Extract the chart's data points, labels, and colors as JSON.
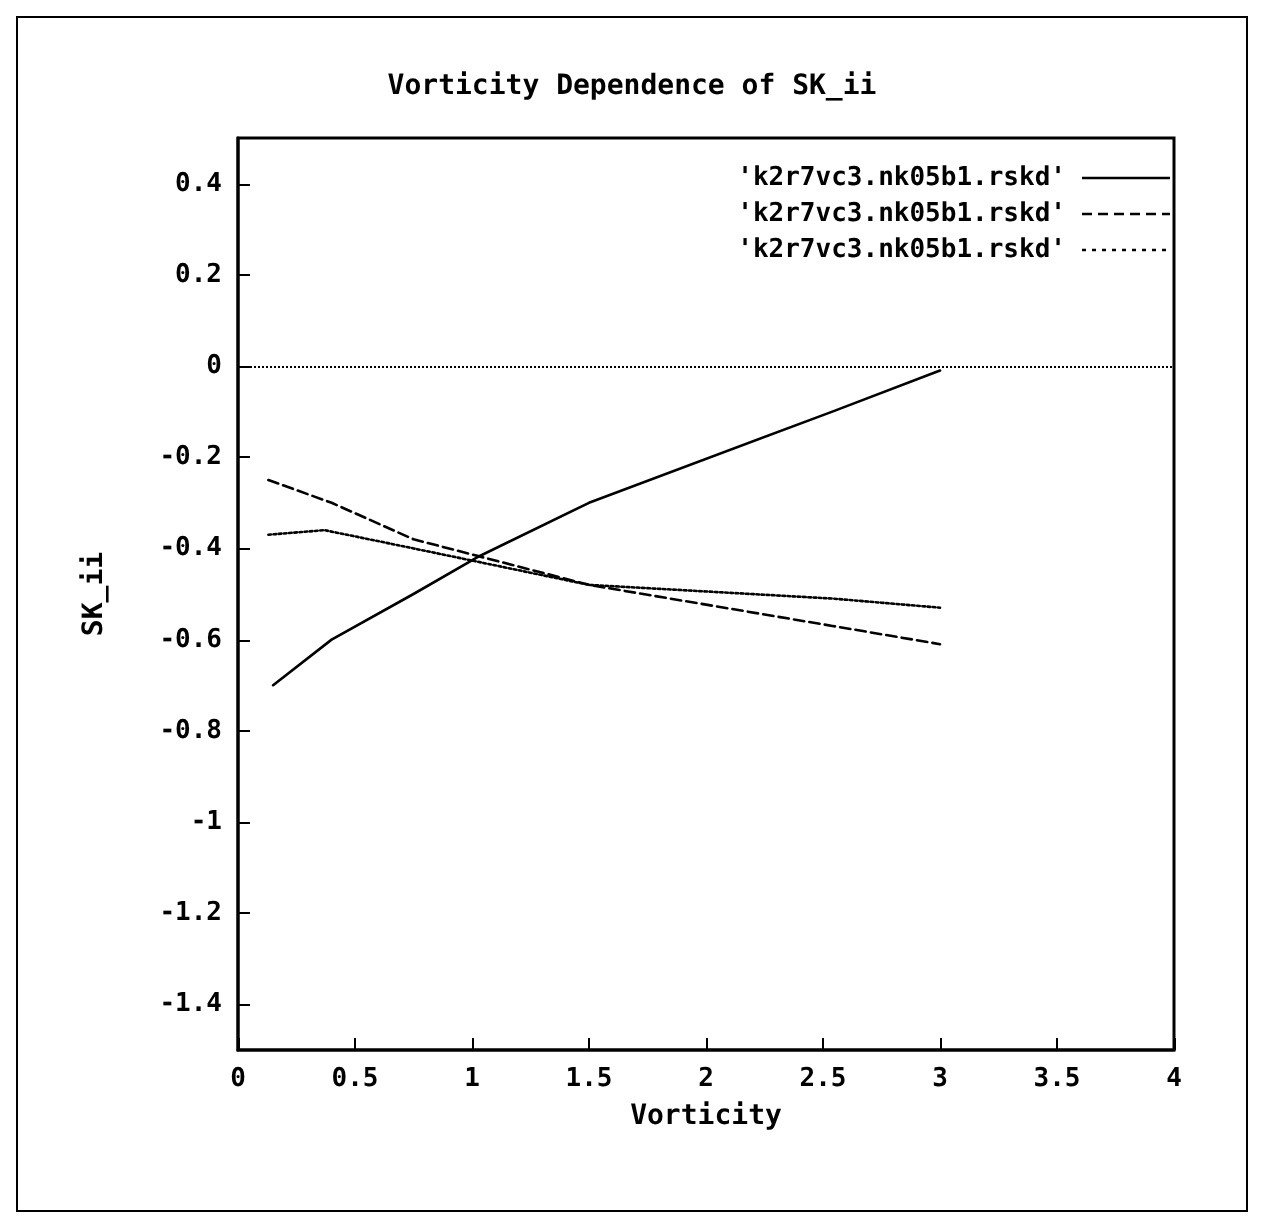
{
  "chart_data": {
    "type": "line",
    "title": "Vorticity Dependence of SK_ii",
    "xlabel": "Vorticity",
    "ylabel": "SK_ii",
    "xlim": [
      0,
      4
    ],
    "xticks": [
      0,
      0.5,
      1,
      1.5,
      2,
      2.5,
      3,
      3.5,
      4
    ],
    "ylim": [
      -1.5,
      0.5
    ],
    "yticks": [
      -1.4,
      -1.2,
      -1,
      -0.8,
      -0.6,
      -0.4,
      -0.2,
      0,
      0.2,
      0.4
    ],
    "grid": false,
    "legend": "top right",
    "marker": "none",
    "ref_lines": [
      {
        "axis": "y",
        "value": 0,
        "color": "#000000",
        "line_style": "dotted"
      }
    ],
    "series": [
      {
        "name": "'k2r7vc3.nk05b1.rskd'",
        "color": "#000000",
        "line_style": "solid",
        "x": [
          0.15,
          0.4,
          0.75,
          1.02,
          1.5,
          2.54,
          3
        ],
        "values": [
          -0.7,
          -0.6,
          -0.5,
          -0.42,
          -0.3,
          -0.1,
          -0.01
        ]
      },
      {
        "name": "'k2r7vc3.nk05b1.rskd'",
        "color": "#000000",
        "line_style": "dashed",
        "x": [
          0.13,
          0.4,
          0.75,
          1.5,
          2.54,
          3
        ],
        "values": [
          -0.25,
          -0.3,
          -0.38,
          -0.48,
          -0.57,
          -0.61
        ]
      },
      {
        "name": "'k2r7vc3.nk05b1.rskd'",
        "color": "#000000",
        "line_style": "dotted",
        "x": [
          0.13,
          0.37,
          0.75,
          1.5,
          2.54,
          3
        ],
        "values": [
          -0.37,
          -0.36,
          -0.4,
          -0.48,
          -0.51,
          -0.53
        ]
      }
    ]
  }
}
